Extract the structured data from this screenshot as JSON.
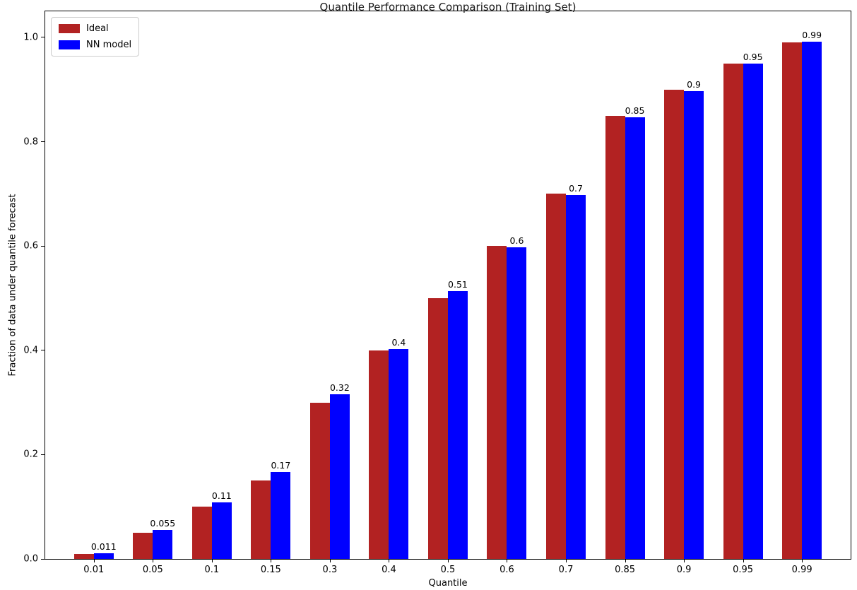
{
  "chart_data": {
    "type": "bar",
    "title": "Quantile Performance Comparison (Training Set)",
    "xlabel": "Quantile",
    "ylabel": "Fraction of data under quantile forecast",
    "categories": [
      "0.01",
      "0.05",
      "0.1",
      "0.15",
      "0.3",
      "0.4",
      "0.5",
      "0.6",
      "0.7",
      "0.85",
      "0.9",
      "0.95",
      "0.99"
    ],
    "series": [
      {
        "name": "Ideal",
        "color": "#B22222",
        "values": [
          0.01,
          0.05,
          0.1,
          0.15,
          0.3,
          0.4,
          0.5,
          0.6,
          0.7,
          0.85,
          0.9,
          0.95,
          0.99
        ]
      },
      {
        "name": "NN model",
        "color": "#0000FF",
        "values": [
          0.011,
          0.055,
          0.108,
          0.166,
          0.316,
          0.403,
          0.513,
          0.598,
          0.698,
          0.847,
          0.897,
          0.95,
          0.992
        ]
      }
    ],
    "bar_labels": [
      "0.011",
      "0.055",
      "0.11",
      "0.17",
      "0.32",
      "0.4",
      "0.51",
      "0.6",
      "0.7",
      "0.85",
      "0.9",
      "0.95",
      "0.99"
    ],
    "bar_labels_over_series": "NN model",
    "yticks": [
      "0.0",
      "0.2",
      "0.4",
      "0.6",
      "0.8",
      "1.0"
    ],
    "ytick_values": [
      0.0,
      0.2,
      0.4,
      0.6,
      0.8,
      1.0
    ],
    "ylim": [
      0,
      1.05
    ],
    "legend_position": "upper left",
    "grid": false,
    "background": "#ffffff"
  }
}
